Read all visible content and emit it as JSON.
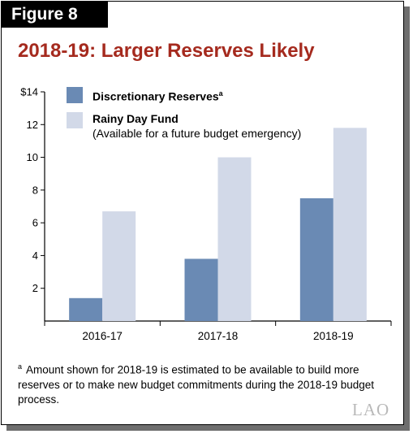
{
  "figure_label": "Figure 8",
  "title": "2018-19: Larger Reserves Likely",
  "colors": {
    "title": "#a52a1e",
    "discretionary": "#6a8ab4",
    "rainy_day": "#d2d9e8"
  },
  "chart_data": {
    "type": "bar",
    "categories": [
      "2016-17",
      "2017-18",
      "2018-19"
    ],
    "series": [
      {
        "name": "Discretionary Reserves",
        "name_sup": "a",
        "values": [
          1.4,
          3.8,
          7.5
        ]
      },
      {
        "name": "Rainy Day Fund",
        "name_sub": "(Available for a future budget emergency)",
        "values": [
          6.7,
          10.0,
          11.8
        ]
      }
    ],
    "ylim": [
      0,
      14
    ],
    "ytick_labels": [
      "2",
      "4",
      "6",
      "8",
      "10",
      "12",
      "$14"
    ],
    "yticks": [
      2,
      4,
      6,
      8,
      10,
      12,
      14
    ],
    "legend_position": "top-left",
    "grid": false
  },
  "footnote": {
    "marker": "a",
    "text": "Amount shown for 2018-19 is estimated to be available to build more reserves or to make new budget commitments during the 2018-19 budget process."
  },
  "logo_text": "LAO"
}
